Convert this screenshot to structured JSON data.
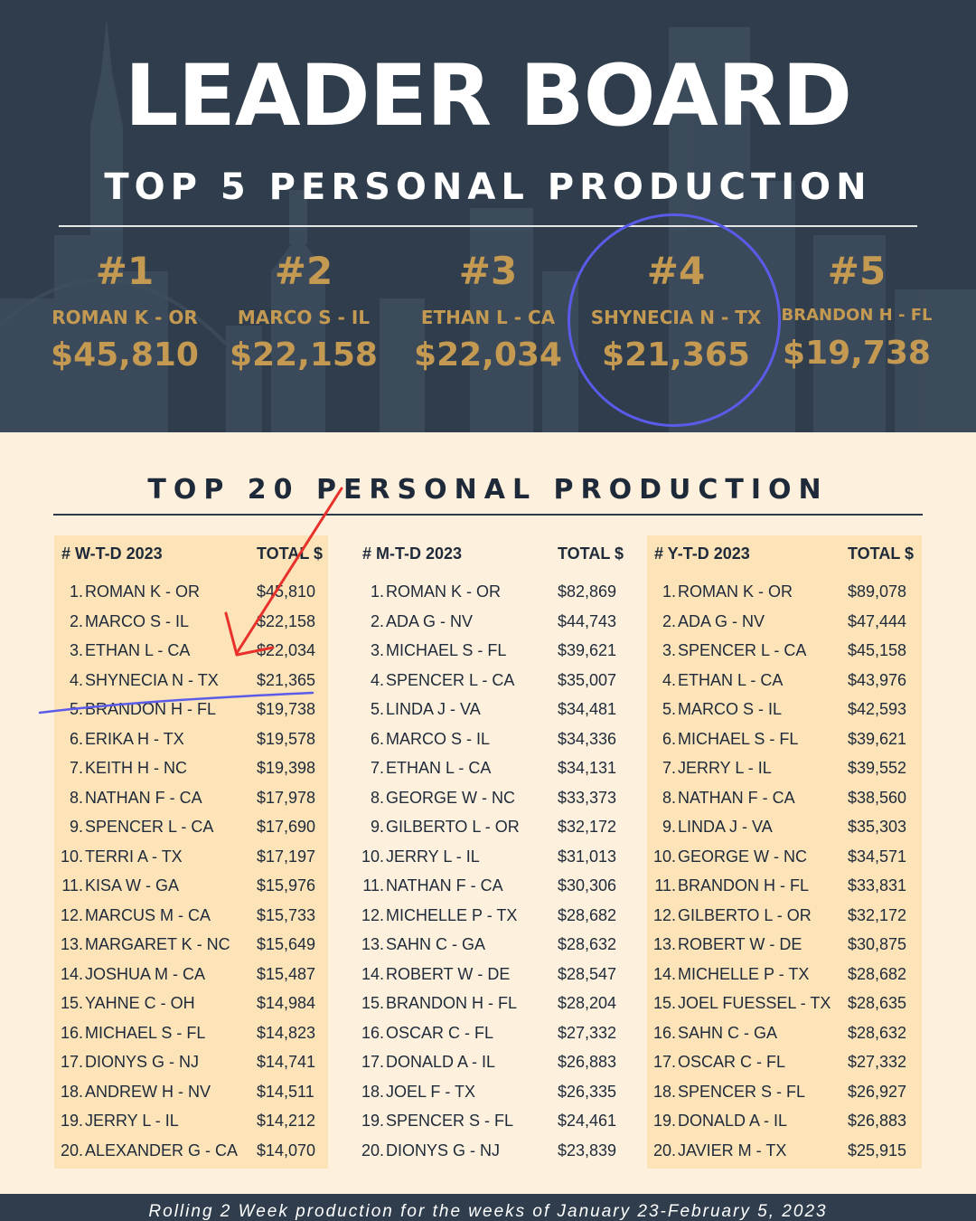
{
  "header": {
    "title": "LEADER BOARD",
    "subtitle": "TOP 5 PERSONAL PRODUCTION"
  },
  "top5": [
    {
      "rank": "#1",
      "name": "ROMAN K - OR",
      "amount": "$45,810"
    },
    {
      "rank": "#2",
      "name": "MARCO S - IL",
      "amount": "$22,158"
    },
    {
      "rank": "#3",
      "name": "ETHAN L - CA",
      "amount": "$22,034"
    },
    {
      "rank": "#4",
      "name": "SHYNECIA N - TX",
      "amount": "$21,365"
    },
    {
      "rank": "#5",
      "name": "BRANDON H - FL",
      "amount": "$19,738"
    }
  ],
  "section_title": "TOP 20 PERSONAL PRODUCTION",
  "columns": [
    {
      "label": "#  W-T-D 2023",
      "total_label": "TOTAL $",
      "rows": [
        {
          "num": "1.",
          "name": "ROMAN K - OR",
          "value": "$45,810"
        },
        {
          "num": "2.",
          "name": "MARCO S - IL",
          "value": "$22,158"
        },
        {
          "num": "3.",
          "name": "ETHAN L - CA",
          "value": "$22,034"
        },
        {
          "num": "4.",
          "name": "SHYNECIA N - TX",
          "value": "$21,365"
        },
        {
          "num": "5.",
          "name": "BRANDON H - FL",
          "value": "$19,738"
        },
        {
          "num": "6.",
          "name": "ERIKA H - TX",
          "value": "$19,578"
        },
        {
          "num": "7.",
          "name": "KEITH H - NC",
          "value": "$19,398"
        },
        {
          "num": "8.",
          "name": "NATHAN F - CA",
          "value": "$17,978"
        },
        {
          "num": "9.",
          "name": "SPENCER L - CA",
          "value": "$17,690"
        },
        {
          "num": "10.",
          "name": "TERRI A - TX",
          "value": "$17,197"
        },
        {
          "num": "11.",
          "name": "KISA W - GA",
          "value": "$15,976"
        },
        {
          "num": "12.",
          "name": "MARCUS M - CA",
          "value": "$15,733"
        },
        {
          "num": "13.",
          "name": "MARGARET K - NC",
          "value": "$15,649"
        },
        {
          "num": "14.",
          "name": "JOSHUA M - CA",
          "value": "$15,487"
        },
        {
          "num": "15.",
          "name": "YAHNE C - OH",
          "value": "$14,984"
        },
        {
          "num": "16.",
          "name": "MICHAEL S - FL",
          "value": "$14,823"
        },
        {
          "num": "17.",
          "name": "DIONYS G - NJ",
          "value": "$14,741"
        },
        {
          "num": "18.",
          "name": "ANDREW H - NV",
          "value": "$14,511"
        },
        {
          "num": "19.",
          "name": "JERRY L - IL",
          "value": "$14,212"
        },
        {
          "num": "20.",
          "name": "ALEXANDER G - CA",
          "value": "$14,070"
        }
      ]
    },
    {
      "label": "#  M-T-D 2023",
      "total_label": "TOTAL $",
      "rows": [
        {
          "num": "1.",
          "name": "ROMAN K - OR",
          "value": "$82,869"
        },
        {
          "num": "2.",
          "name": "ADA G - NV",
          "value": "$44,743"
        },
        {
          "num": "3.",
          "name": "MICHAEL S - FL",
          "value": "$39,621"
        },
        {
          "num": "4.",
          "name": "SPENCER L - CA",
          "value": "$35,007"
        },
        {
          "num": "5.",
          "name": "LINDA J - VA",
          "value": "$34,481"
        },
        {
          "num": "6.",
          "name": "MARCO S - IL",
          "value": "$34,336"
        },
        {
          "num": "7.",
          "name": "ETHAN L - CA",
          "value": "$34,131"
        },
        {
          "num": "8.",
          "name": "GEORGE W - NC",
          "value": "$33,373"
        },
        {
          "num": "9.",
          "name": "GILBERTO L - OR",
          "value": "$32,172"
        },
        {
          "num": "10.",
          "name": "JERRY L - IL",
          "value": "$31,013"
        },
        {
          "num": "11.",
          "name": "NATHAN F - CA",
          "value": "$30,306"
        },
        {
          "num": "12.",
          "name": "MICHELLE P - TX",
          "value": "$28,682"
        },
        {
          "num": "13.",
          "name": "SAHN C - GA",
          "value": "$28,632"
        },
        {
          "num": "14.",
          "name": "ROBERT W - DE",
          "value": "$28,547"
        },
        {
          "num": "15.",
          "name": "BRANDON H - FL",
          "value": "$28,204"
        },
        {
          "num": "16.",
          "name": "OSCAR C - FL",
          "value": "$27,332"
        },
        {
          "num": "17.",
          "name": "DONALD A - IL",
          "value": "$26,883"
        },
        {
          "num": "18.",
          "name": "JOEL F - TX",
          "value": "$26,335"
        },
        {
          "num": "19.",
          "name": "SPENCER S - FL",
          "value": "$24,461"
        },
        {
          "num": "20.",
          "name": "DIONYS G - NJ",
          "value": "$23,839"
        }
      ]
    },
    {
      "label": "# Y-T-D 2023",
      "total_label": "TOTAL $",
      "rows": [
        {
          "num": "1.",
          "name": "ROMAN K - OR",
          "value": "$89,078"
        },
        {
          "num": "2.",
          "name": "ADA G - NV",
          "value": "$47,444"
        },
        {
          "num": "3.",
          "name": "SPENCER L - CA",
          "value": "$45,158"
        },
        {
          "num": "4.",
          "name": "ETHAN L - CA",
          "value": "$43,976"
        },
        {
          "num": "5.",
          "name": "MARCO S - IL",
          "value": "$42,593"
        },
        {
          "num": "6.",
          "name": "MICHAEL S - FL",
          "value": "$39,621"
        },
        {
          "num": "7.",
          "name": "JERRY L - IL",
          "value": "$39,552"
        },
        {
          "num": "8.",
          "name": "NATHAN F - CA",
          "value": "$38,560"
        },
        {
          "num": "9.",
          "name": "LINDA J - VA",
          "value": "$35,303"
        },
        {
          "num": "10.",
          "name": "GEORGE W - NC",
          "value": "$34,571"
        },
        {
          "num": "11.",
          "name": "BRANDON H - FL",
          "value": "$33,831"
        },
        {
          "num": "12.",
          "name": "GILBERTO L - OR",
          "value": "$32,172"
        },
        {
          "num": "13.",
          "name": "ROBERT W - DE",
          "value": "$30,875"
        },
        {
          "num": "14.",
          "name": "MICHELLE P - TX",
          "value": "$28,682"
        },
        {
          "num": "15.",
          "name": "JOEL FUESSEL - TX",
          "value": "$28,635"
        },
        {
          "num": "16.",
          "name": "SAHN C - GA",
          "value": "$28,632"
        },
        {
          "num": "17.",
          "name": "OSCAR C - FL",
          "value": "$27,332"
        },
        {
          "num": "18.",
          "name": "SPENCER S - FL",
          "value": "$26,927"
        },
        {
          "num": "19.",
          "name": "DONALD A - IL",
          "value": "$26,883"
        },
        {
          "num": "20.",
          "name": "JAVIER M - TX",
          "value": "$25,915"
        }
      ]
    }
  ],
  "footer": "Rolling 2 Week production for the weeks of January 23-February 5, 2023",
  "colors": {
    "header_bg": "#2f3d4c",
    "gold": "#c49a52",
    "page_bg": "#fdf0dc",
    "column_highlight": "#fce3b8",
    "text_dark": "#1e2a3a",
    "circle_annotation": "#5b5bea",
    "arrow_annotation": "#e8312a"
  }
}
